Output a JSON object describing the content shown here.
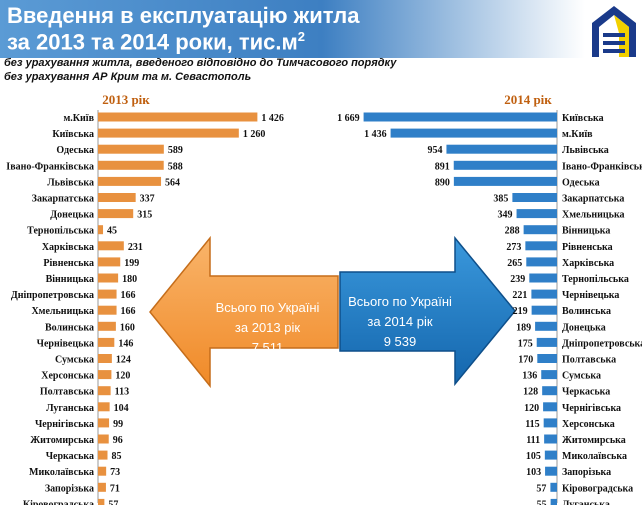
{
  "title": {
    "line1": "Введення в експлуатацію житла",
    "line2": "за 2013 та 2014 роки, тис.м",
    "line2_sup": "2"
  },
  "subtitle": {
    "line1": "без урахування житла, введеного відповідно до Тимчасового порядку",
    "line2": "без урахування АР Крим та м. Севастополь"
  },
  "totals": {
    "left": {
      "line1": "Всього по Україні",
      "line2": "за 2013 рік",
      "value": "7 511",
      "color": "#f7953b"
    },
    "right": {
      "line1": "Всього по Україні",
      "line2": "за 2014 рік",
      "value": "9 539",
      "color": "#1f7fc5"
    }
  },
  "chart_data": [
    {
      "type": "bar",
      "orientation": "horizontal",
      "title": "2013 рік",
      "color": "#e8913f",
      "categories": [
        "м.Київ",
        "Київська",
        "Одеська",
        "Івано-Франківська",
        "Львівська",
        "Закарпатська",
        "Донецька",
        "Тернопільська",
        "Харківська",
        "Рівненська",
        "Вінницька",
        "Дніпропетровська",
        "Хмельницька",
        "Волинська",
        "Чернівецька",
        "Сумська",
        "Херсонська",
        "Полтавська",
        "Луганська",
        "Чернігівська",
        "Житомирська",
        "Черкаська",
        "Миколаївська",
        "Запорізька",
        "Кіровоградська"
      ],
      "values": [
        1426,
        1260,
        589,
        588,
        564,
        337,
        315,
        45,
        231,
        199,
        180,
        166,
        166,
        160,
        146,
        124,
        120,
        113,
        104,
        99,
        96,
        85,
        73,
        71,
        57
      ],
      "labels": [
        "1 426",
        "1 260",
        "589",
        "588",
        "564",
        "337",
        "315",
        "45",
        "231",
        "199",
        "180",
        "166",
        "166",
        "160",
        "146",
        "124",
        "120",
        "113",
        "104",
        "99",
        "96",
        "85",
        "73",
        "71",
        "57"
      ]
    },
    {
      "type": "bar",
      "orientation": "horizontal",
      "title": "2014 рік",
      "color": "#2f7fc8",
      "categories": [
        "Київська",
        "м.Київ",
        "Львівська",
        "Івано-Франківська",
        "Одеська",
        "Закарпатська",
        "Хмельницька",
        "Вінницька",
        "Рівненська",
        "Харківська",
        "Тернопільська",
        "Чернівецька",
        "Волинська",
        "Донецька",
        "Дніпропетровська",
        "Полтавська",
        "Сумська",
        "Черкаська",
        "Чернігівська",
        "Херсонська",
        "Житомирська",
        "Миколаївська",
        "Запорізька",
        "Кіровоградська",
        "Луганська"
      ],
      "values": [
        1669,
        1436,
        954,
        891,
        890,
        385,
        349,
        288,
        273,
        265,
        239,
        221,
        219,
        189,
        175,
        170,
        136,
        128,
        120,
        115,
        111,
        105,
        103,
        57,
        55
      ],
      "labels": [
        "1 669",
        "1 436",
        "954",
        "891",
        "890",
        "385",
        "349",
        "288",
        "273",
        "265",
        "239",
        "221",
        "219",
        "189",
        "175",
        "170",
        "136",
        "128",
        "120",
        "115",
        "111",
        "105",
        "103",
        "57",
        "55"
      ]
    }
  ]
}
